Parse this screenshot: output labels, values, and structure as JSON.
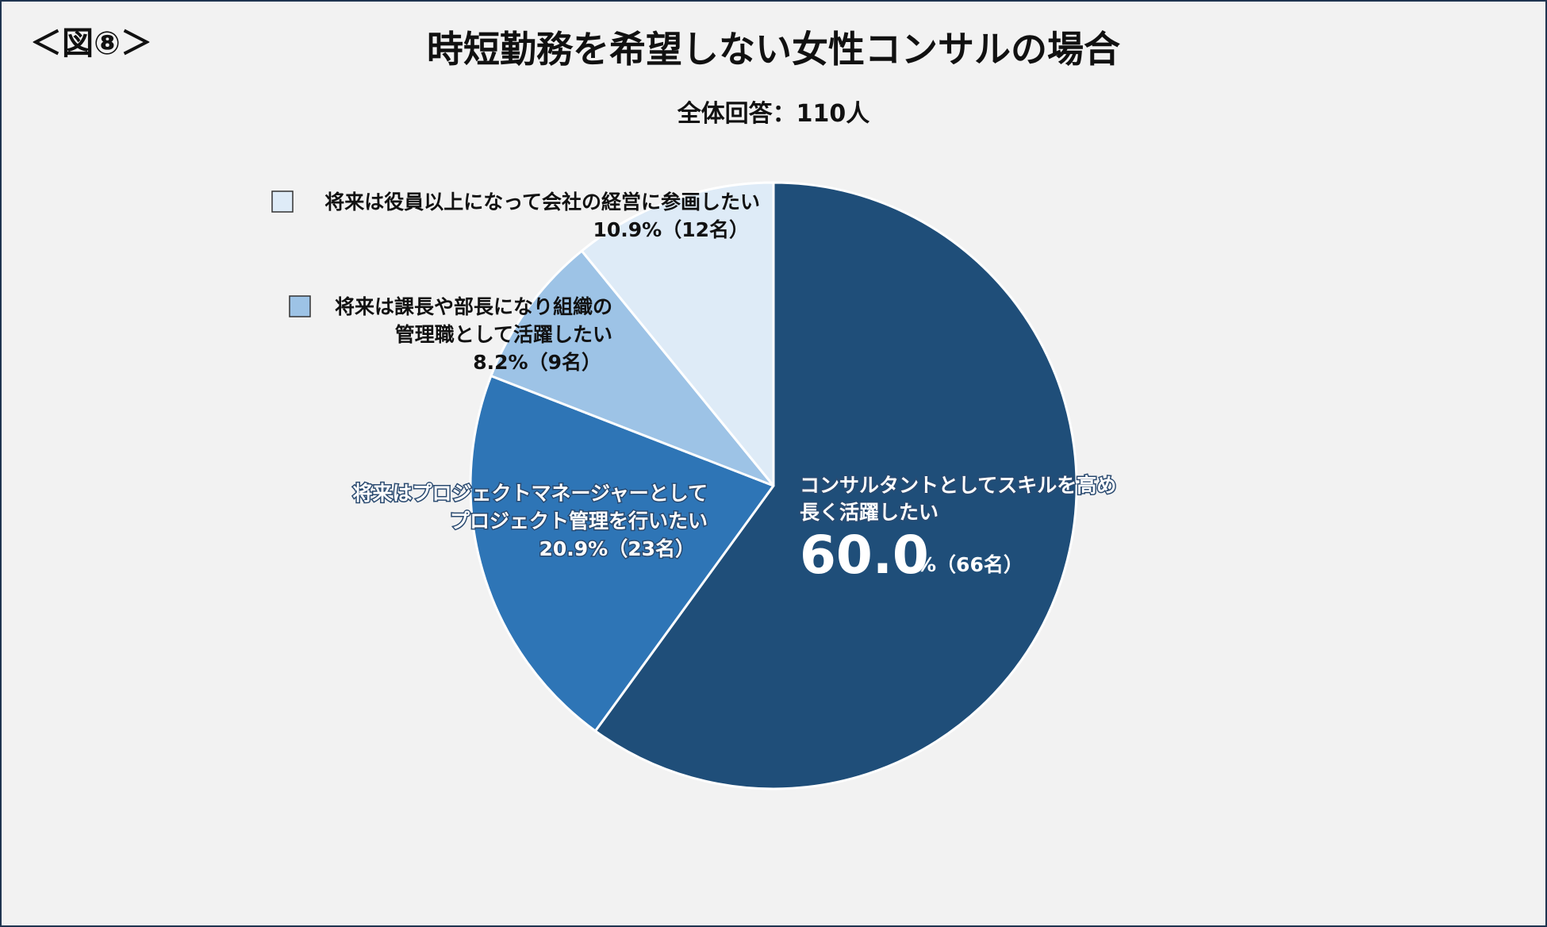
{
  "figure_tag": "＜図⑧＞",
  "chart_data": {
    "type": "pie",
    "title": "時短勤務を希望しない女性コンサルの場合",
    "subtitle": "全体回答：110人",
    "start_angle_deg": 0,
    "direction": "clockwise",
    "slices": [
      {
        "name": "コンサルタントとしてスキルを高め長く活躍したい",
        "label_lines": [
          "コンサルタントとしてスキルを高め",
          "長く活躍したい"
        ],
        "percent": 60.0,
        "percent_text": "60.0",
        "count_text": "%（66名）",
        "color": "#1f4e79"
      },
      {
        "name": "将来はプロジェクトマネージャーとしてプロジェクト管理を行いたい",
        "label_lines": [
          "将来はプロジェクトマネージャーとして",
          "プロジェクト管理を行いたい"
        ],
        "percent": 20.9,
        "value_text": "20.9%（23名）",
        "color": "#2e75b6"
      },
      {
        "name": "将来は課長や部長になり組織の管理職として活躍したい",
        "label_lines": [
          "将来は課長や部長になり組織の",
          "管理職として活躍したい"
        ],
        "percent": 8.2,
        "value_text": "8.2%（9名）",
        "color": "#9dc3e6"
      },
      {
        "name": "将来は役員以上になって会社の経営に参画したい",
        "label_lines": [
          "将来は役員以上になって会社の経営に参画したい"
        ],
        "percent": 10.9,
        "value_text": "10.9%（12名）",
        "color": "#deebf7"
      }
    ]
  }
}
